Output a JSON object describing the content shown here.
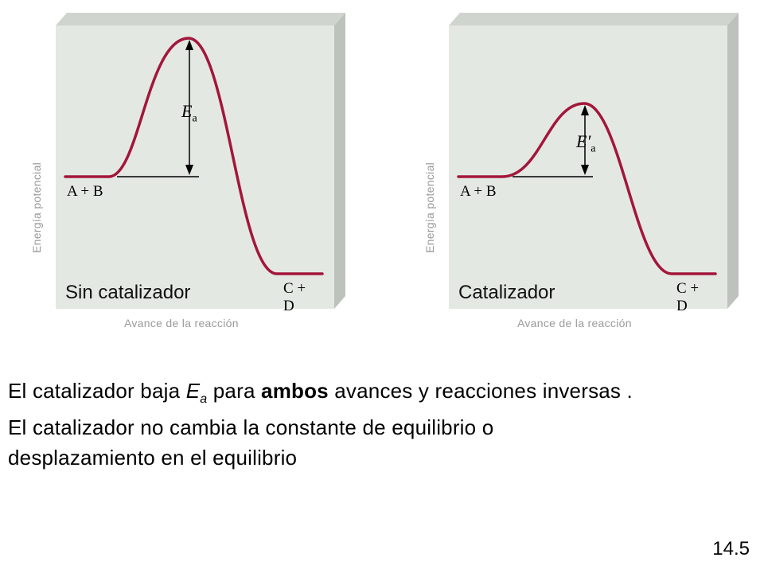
{
  "diagrams": [
    {
      "panel_label": "Sin catalizador",
      "y_axis_label": "Energía potencial",
      "x_axis_label": "Avance de la reacción",
      "reactants_label": "A + B",
      "products_label": "C + D",
      "ea_symbol": "E",
      "ea_subscript": "a",
      "ea_prime": ""
    },
    {
      "panel_label": "Catalizador",
      "y_axis_label": "Energía potencial",
      "x_axis_label": "Avance de la reacción",
      "reactants_label": "A + B",
      "products_label": "C + D",
      "ea_symbol": "E",
      "ea_subscript": "a",
      "ea_prime": "′"
    }
  ],
  "text": {
    "line1_prefix": "El catalizador baja ",
    "line1_ea_symbol": "E",
    "line1_ea_sub": "a",
    "line1_mid": " para ",
    "line1_bold": "ambos",
    "line1_suffix": " avances y reacciones inversas .",
    "line2": "El catalizador no cambia la constante de equilibrio o",
    "line3": "desplazamiento en el equilibrio"
  },
  "slide_number": "14.5",
  "colors": {
    "panel_face": "#e3e8e2",
    "panel_side": "#bdc2bc",
    "panel_top": "#cfd4ce",
    "curve": "#a3163a",
    "text_gray": "#9a9a9a"
  }
}
